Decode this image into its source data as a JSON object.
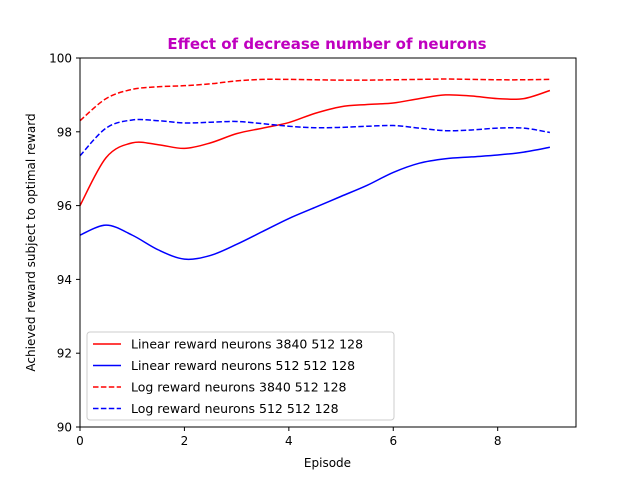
{
  "chart_data": {
    "type": "line",
    "title": "Effect of decrease number of neurons",
    "title_color": "#bf00bf",
    "xlabel": "Episode",
    "ylabel": "Achieved reward subject to optimal reward",
    "xlim": [
      0,
      9.5
    ],
    "ylim": [
      90,
      100
    ],
    "xticks": [
      0,
      2,
      4,
      6,
      8
    ],
    "yticks": [
      90,
      92,
      94,
      96,
      98,
      100
    ],
    "grid": false,
    "legend_position": "lower-left",
    "series": [
      {
        "name": "Linear reward neurons 3840 512 128",
        "color": "#ff0000",
        "dash": "solid",
        "x": [
          0,
          0.5,
          1,
          1.5,
          2,
          2.5,
          3,
          3.5,
          4,
          4.5,
          5,
          5.5,
          6,
          6.5,
          7,
          7.5,
          8,
          8.5,
          9
        ],
        "y": [
          96.0,
          97.3,
          97.7,
          97.65,
          97.55,
          97.7,
          97.95,
          98.1,
          98.25,
          98.5,
          98.68,
          98.74,
          98.78,
          98.9,
          99.0,
          98.97,
          98.9,
          98.9,
          99.12
        ]
      },
      {
        "name": "Linear reward neurons 512 512 128",
        "color": "#0000ff",
        "dash": "solid",
        "x": [
          0,
          0.5,
          1,
          1.5,
          2,
          2.5,
          3,
          3.5,
          4,
          4.5,
          5,
          5.5,
          6,
          6.5,
          7,
          7.5,
          8,
          8.5,
          9
        ],
        "y": [
          95.2,
          95.47,
          95.2,
          94.8,
          94.55,
          94.65,
          94.95,
          95.3,
          95.65,
          95.95,
          96.25,
          96.55,
          96.9,
          97.15,
          97.27,
          97.32,
          97.37,
          97.45,
          97.58
        ]
      },
      {
        "name": "Log reward neurons 3840 512 128",
        "color": "#ff0000",
        "dash": "dashed",
        "x": [
          0,
          0.5,
          1,
          1.5,
          2,
          2.5,
          3,
          3.5,
          4,
          4.5,
          5,
          5.5,
          6,
          6.5,
          7,
          7.5,
          8,
          8.5,
          9
        ],
        "y": [
          98.3,
          98.9,
          99.15,
          99.22,
          99.25,
          99.3,
          99.38,
          99.42,
          99.42,
          99.41,
          99.4,
          99.4,
          99.41,
          99.42,
          99.43,
          99.42,
          99.41,
          99.41,
          99.42
        ]
      },
      {
        "name": "Log reward neurons 512 512 128",
        "color": "#0000ff",
        "dash": "dashed",
        "x": [
          0,
          0.5,
          1,
          1.5,
          2,
          2.5,
          3,
          3.5,
          4,
          4.5,
          5,
          5.5,
          6,
          6.5,
          7,
          7.5,
          8,
          8.5,
          9
        ],
        "y": [
          97.35,
          98.1,
          98.32,
          98.3,
          98.24,
          98.26,
          98.28,
          98.22,
          98.15,
          98.11,
          98.12,
          98.15,
          98.17,
          98.1,
          98.03,
          98.05,
          98.1,
          98.1,
          97.98
        ]
      }
    ]
  }
}
